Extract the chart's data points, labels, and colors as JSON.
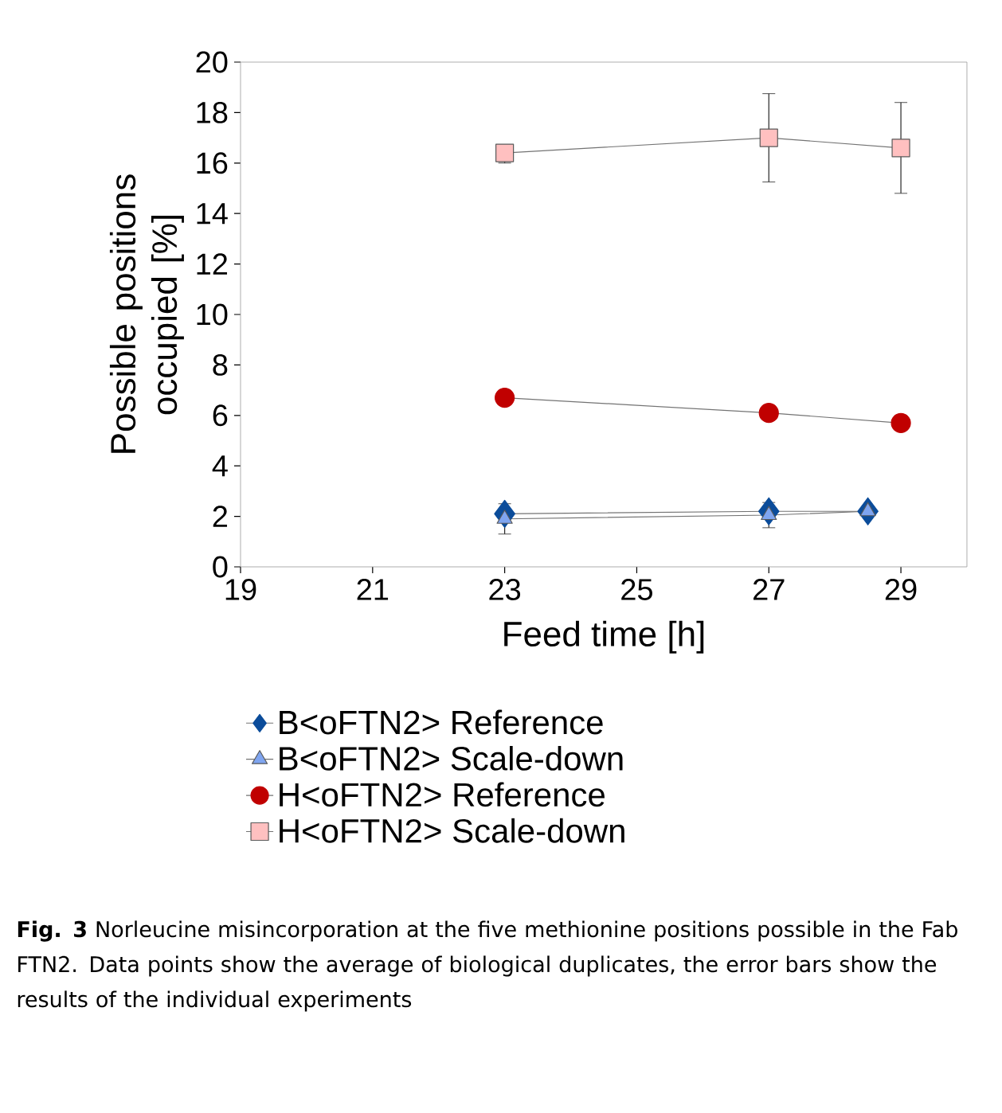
{
  "chart_data": {
    "type": "line",
    "xlabel": "Feed time [h]",
    "ylabel": "Possible positions occupied [%]",
    "xlim": [
      19,
      30
    ],
    "ylim": [
      0,
      20
    ],
    "xticks": [
      19,
      21,
      23,
      25,
      27,
      29
    ],
    "yticks": [
      0,
      2,
      4,
      6,
      8,
      10,
      12,
      14,
      16,
      18,
      20
    ],
    "grid": false,
    "legend": "bottom",
    "line_style": "solid",
    "series": [
      {
        "name": "B<oFTN2> Reference",
        "color": "#0b4c9a",
        "marker": "diamond",
        "x": [
          23,
          27,
          28.5
        ],
        "values": [
          2.1,
          2.2,
          2.2
        ]
      },
      {
        "name": "B<oFTN2> Scale-down",
        "color": "#7fa5f0",
        "marker": "triangle",
        "x": [
          23,
          27,
          28.5
        ],
        "values": [
          1.9,
          2.05,
          2.2
        ],
        "errors": [
          [
            1.3,
            2.5
          ],
          [
            1.55,
            2.55
          ],
          null
        ]
      },
      {
        "name": "H<oFTN2> Reference",
        "color": "#c00000",
        "marker": "circle",
        "x": [
          23,
          27,
          29
        ],
        "values": [
          6.7,
          6.1,
          5.7
        ]
      },
      {
        "name": "H<oFTN2> Scale-down",
        "color": "#ffc0c0",
        "marker": "square",
        "x": [
          23,
          27,
          29
        ],
        "values": [
          16.4,
          17.0,
          16.6
        ],
        "errors": [
          [
            16.0,
            16.7
          ],
          [
            15.25,
            18.75
          ],
          [
            14.8,
            18.4
          ]
        ]
      }
    ],
    "annotations": [
      "**Fig. 3** Norleucine misincorporation at the five methionine positions possible in the Fab FTN2. Data points show the average of biological duplicates, the error bars show the results of the individual experiments"
    ]
  }
}
